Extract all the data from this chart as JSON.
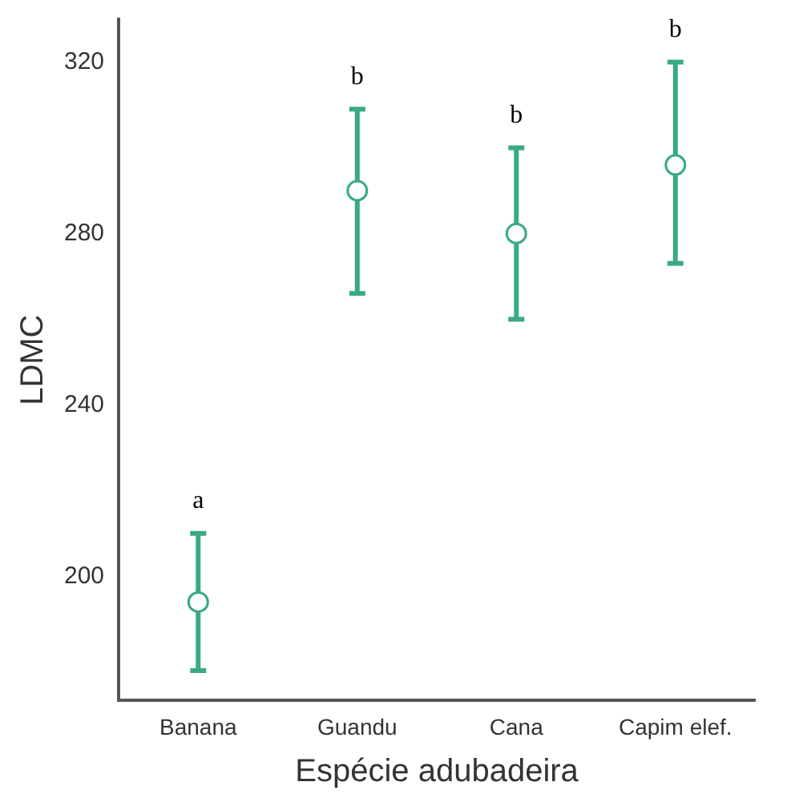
{
  "chart_data": {
    "type": "scatter",
    "xlabel": "Espécie adubadeira",
    "ylabel": "LDMC",
    "categories": [
      "Banana",
      "Guandu",
      "Cana",
      "Capim elef."
    ],
    "series": [
      {
        "color": "#3aa987",
        "values": [
          194,
          290,
          280,
          296
        ],
        "errors": [
          [
            178,
            210
          ],
          [
            266,
            309
          ],
          [
            260,
            300
          ],
          [
            273,
            320
          ]
        ]
      }
    ],
    "ylim": [
      171,
      330
    ],
    "yticks": [
      200,
      240,
      280,
      320
    ],
    "grid": false,
    "legend": false,
    "marker": "circle",
    "annotations": [
      "a",
      "b",
      "b",
      "b"
    ]
  }
}
